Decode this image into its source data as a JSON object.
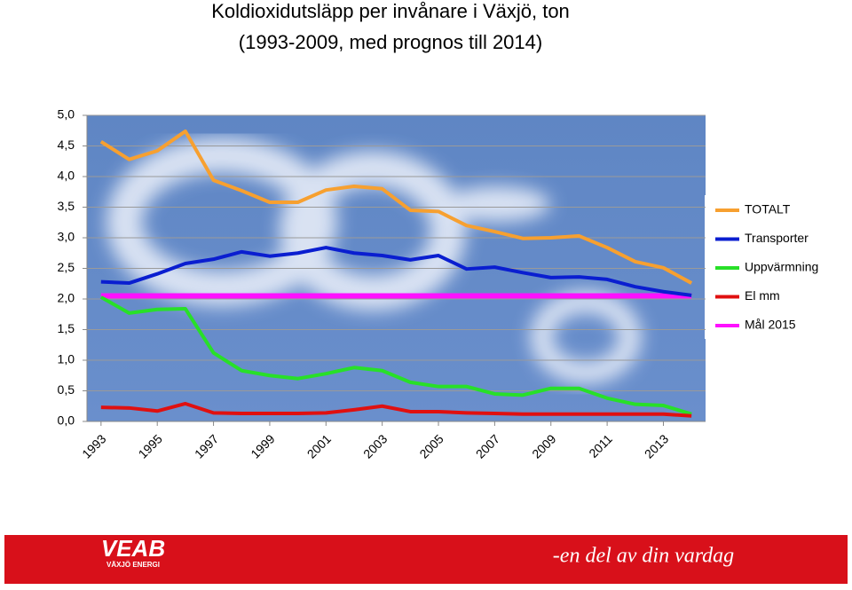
{
  "chart_data": {
    "type": "line",
    "title": "Koldioxidutsläpp per invånare i Växjö, ton",
    "subtitle": "(1993-2009, med prognos till 2014)",
    "x": [
      1993,
      1994,
      1995,
      1996,
      1997,
      1998,
      1999,
      2000,
      2001,
      2002,
      2003,
      2004,
      2005,
      2006,
      2007,
      2008,
      2009,
      2010,
      2011,
      2012,
      2013,
      2014
    ],
    "xlim": [
      1992.5,
      2014.5
    ],
    "xticks": [
      1993,
      1995,
      1997,
      1999,
      2001,
      2003,
      2005,
      2007,
      2009,
      2011,
      2013
    ],
    "ylim": [
      0,
      5
    ],
    "yticks": [
      {
        "value": 0,
        "label": "0,0"
      },
      {
        "value": 0.5,
        "label": "0,5"
      },
      {
        "value": 1,
        "label": "1,0"
      },
      {
        "value": 1.5,
        "label": "1,5"
      },
      {
        "value": 2,
        "label": "2,0"
      },
      {
        "value": 2.5,
        "label": "2,5"
      },
      {
        "value": 3,
        "label": "3,0"
      },
      {
        "value": 3.5,
        "label": "3,5"
      },
      {
        "value": 4,
        "label": "4,0"
      },
      {
        "value": 4.5,
        "label": "4,5"
      },
      {
        "value": 5,
        "label": "5,0"
      }
    ],
    "grid": true,
    "legend": "right",
    "series": [
      {
        "name": "TOTALT",
        "color": "#f7a030",
        "values": [
          4.57,
          4.28,
          4.42,
          4.74,
          3.94,
          3.77,
          3.58,
          3.58,
          3.78,
          3.84,
          3.8,
          3.45,
          3.43,
          3.2,
          3.1,
          2.99,
          3.0,
          3.03,
          2.84,
          2.61,
          2.51,
          2.26
        ]
      },
      {
        "name": "Transporter",
        "color": "#0a1ed0",
        "values": [
          2.28,
          2.26,
          2.41,
          2.58,
          2.65,
          2.77,
          2.7,
          2.75,
          2.84,
          2.75,
          2.71,
          2.64,
          2.71,
          2.49,
          2.52,
          2.43,
          2.35,
          2.36,
          2.32,
          2.2,
          2.12,
          2.06
        ]
      },
      {
        "name": "Uppvärmning",
        "color": "#28e028",
        "values": [
          2.03,
          1.77,
          1.83,
          1.84,
          1.12,
          0.83,
          0.75,
          0.7,
          0.78,
          0.88,
          0.83,
          0.64,
          0.57,
          0.57,
          0.45,
          0.43,
          0.54,
          0.54,
          0.38,
          0.28,
          0.26,
          0.12
        ]
      },
      {
        "name": "El mm",
        "color": "#e01010",
        "values": [
          0.23,
          0.22,
          0.17,
          0.29,
          0.14,
          0.13,
          0.13,
          0.13,
          0.14,
          0.19,
          0.25,
          0.16,
          0.16,
          0.14,
          0.13,
          0.12,
          0.12,
          0.12,
          0.12,
          0.12,
          0.12,
          0.09
        ]
      },
      {
        "name": "Mål 2015",
        "color": "#ff10ff",
        "values": [
          2.05,
          2.05,
          2.05,
          2.05,
          2.05,
          2.05,
          2.05,
          2.05,
          2.05,
          2.05,
          2.05,
          2.05,
          2.05,
          2.05,
          2.05,
          2.05,
          2.05,
          2.05,
          2.05,
          2.05,
          2.05,
          2.05
        ]
      }
    ]
  },
  "footer": {
    "logo": "VEAB",
    "logo_sub": "VÄXJÖ ENERGI",
    "slogan": "-en del av din vardag"
  }
}
